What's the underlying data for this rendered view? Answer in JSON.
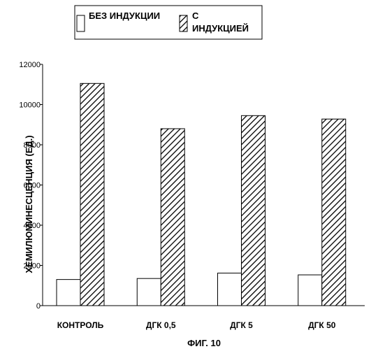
{
  "chart_data": {
    "type": "bar",
    "caption": "ФИГ. 10",
    "ylabel": "ХЕМИЛЮМИНЕСЦЕНЦИЯ (ЕД.)",
    "xlabel": "",
    "ylim": [
      0,
      12000
    ],
    "yticks": [
      0,
      2000,
      4000,
      6000,
      8000,
      10000,
      12000
    ],
    "grid": false,
    "legend_position": "top",
    "categories": [
      "КОНТРОЛЬ",
      "ДГК 0,5",
      "ДГК 5",
      "ДГК 50"
    ],
    "series": [
      {
        "name": "БЕЗ ИНДУКЦИИ",
        "fill": "white",
        "values": [
          1300,
          1350,
          1620,
          1530
        ]
      },
      {
        "name_line1": "С",
        "name_line2": "ИНДУКЦИЕЙ",
        "fill": "hatched",
        "values": [
          11050,
          8800,
          9450,
          9280
        ]
      }
    ]
  }
}
